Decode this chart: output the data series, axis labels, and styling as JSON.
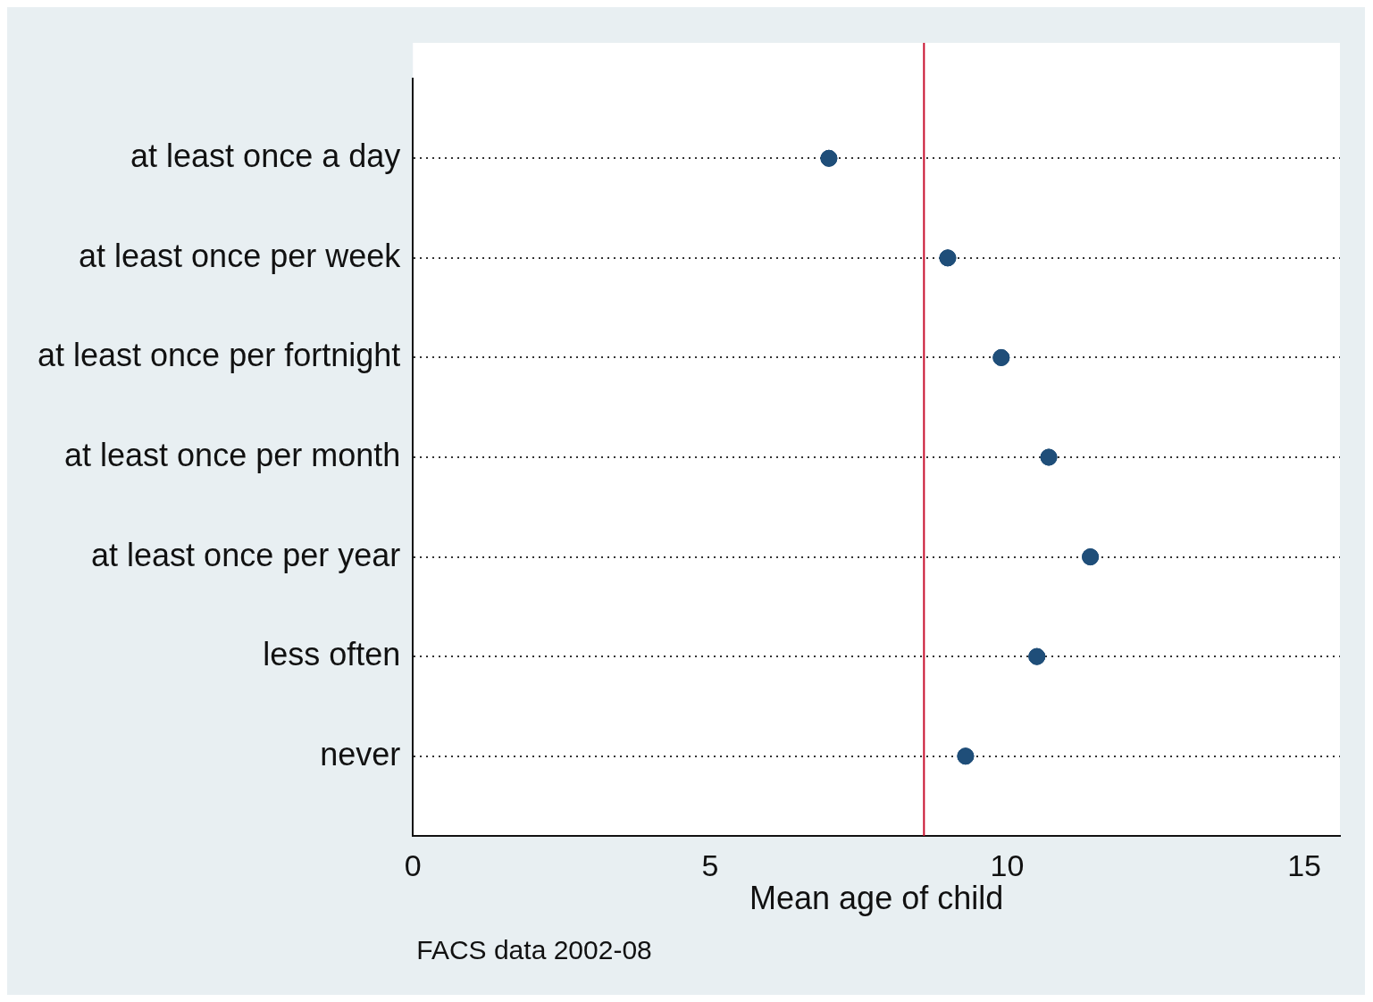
{
  "chart_data": {
    "type": "scatter",
    "orientation": "horizontal",
    "categories": [
      "at least once a day",
      "at least once per week",
      "at least once per fortnight",
      "at least once per month",
      "at least once per year",
      "less often",
      "never"
    ],
    "values": [
      7.0,
      9.0,
      9.9,
      10.7,
      11.4,
      10.5,
      9.3
    ],
    "color": "#1f4e79",
    "marker": "circle",
    "xlim": [
      0,
      15.6
    ],
    "xticks": [
      0,
      5,
      10,
      15
    ],
    "xlabel": "Mean age of child",
    "ref_lines": [
      {
        "axis": "x",
        "value": 8.6,
        "color": "#c8102e"
      }
    ],
    "grid": "y",
    "annotations": [
      "FACS data 2002-08"
    ],
    "legend": false
  }
}
